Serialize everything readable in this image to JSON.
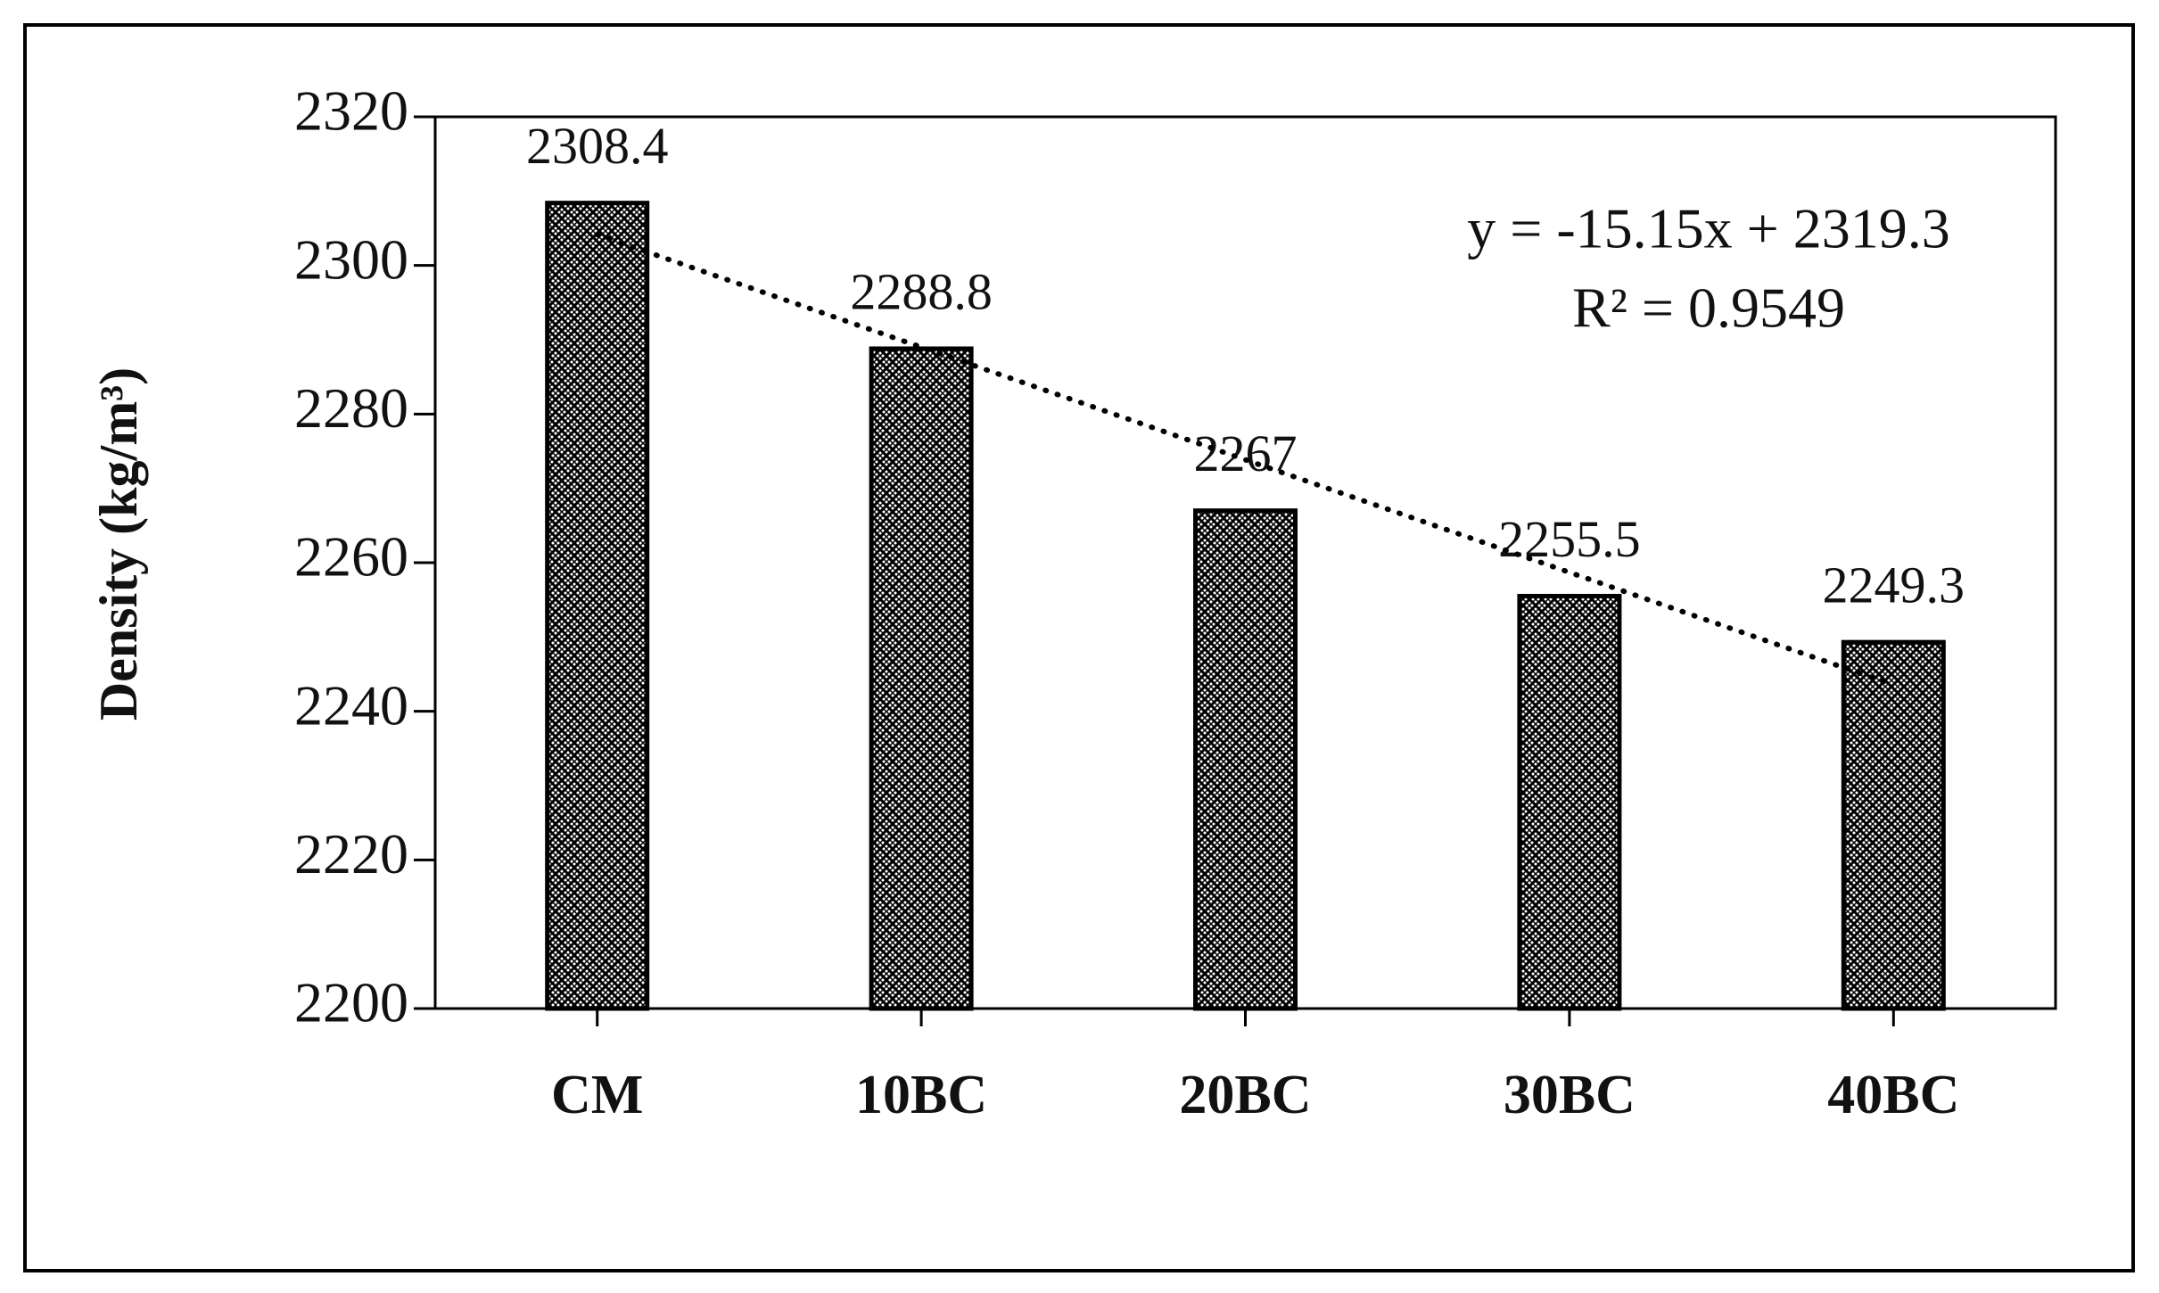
{
  "chart_data": {
    "type": "bar",
    "y_label": "Density (kg/m³)",
    "categories": [
      "CM",
      "10BC",
      "20BC",
      "30BC",
      "40BC"
    ],
    "values": [
      2308.4,
      2288.8,
      2267,
      2255.5,
      2249.3
    ],
    "color": "#000000",
    "ylim": [
      2200,
      2320
    ],
    "yticks": [
      2200,
      2220,
      2240,
      2260,
      2280,
      2300,
      2320
    ],
    "grid": false,
    "trendline": {
      "slope": -15.15,
      "intercept": 2319.3,
      "equation": "y = -15.15x + 2319.3",
      "r_squared": "R² = 0.9549"
    }
  }
}
